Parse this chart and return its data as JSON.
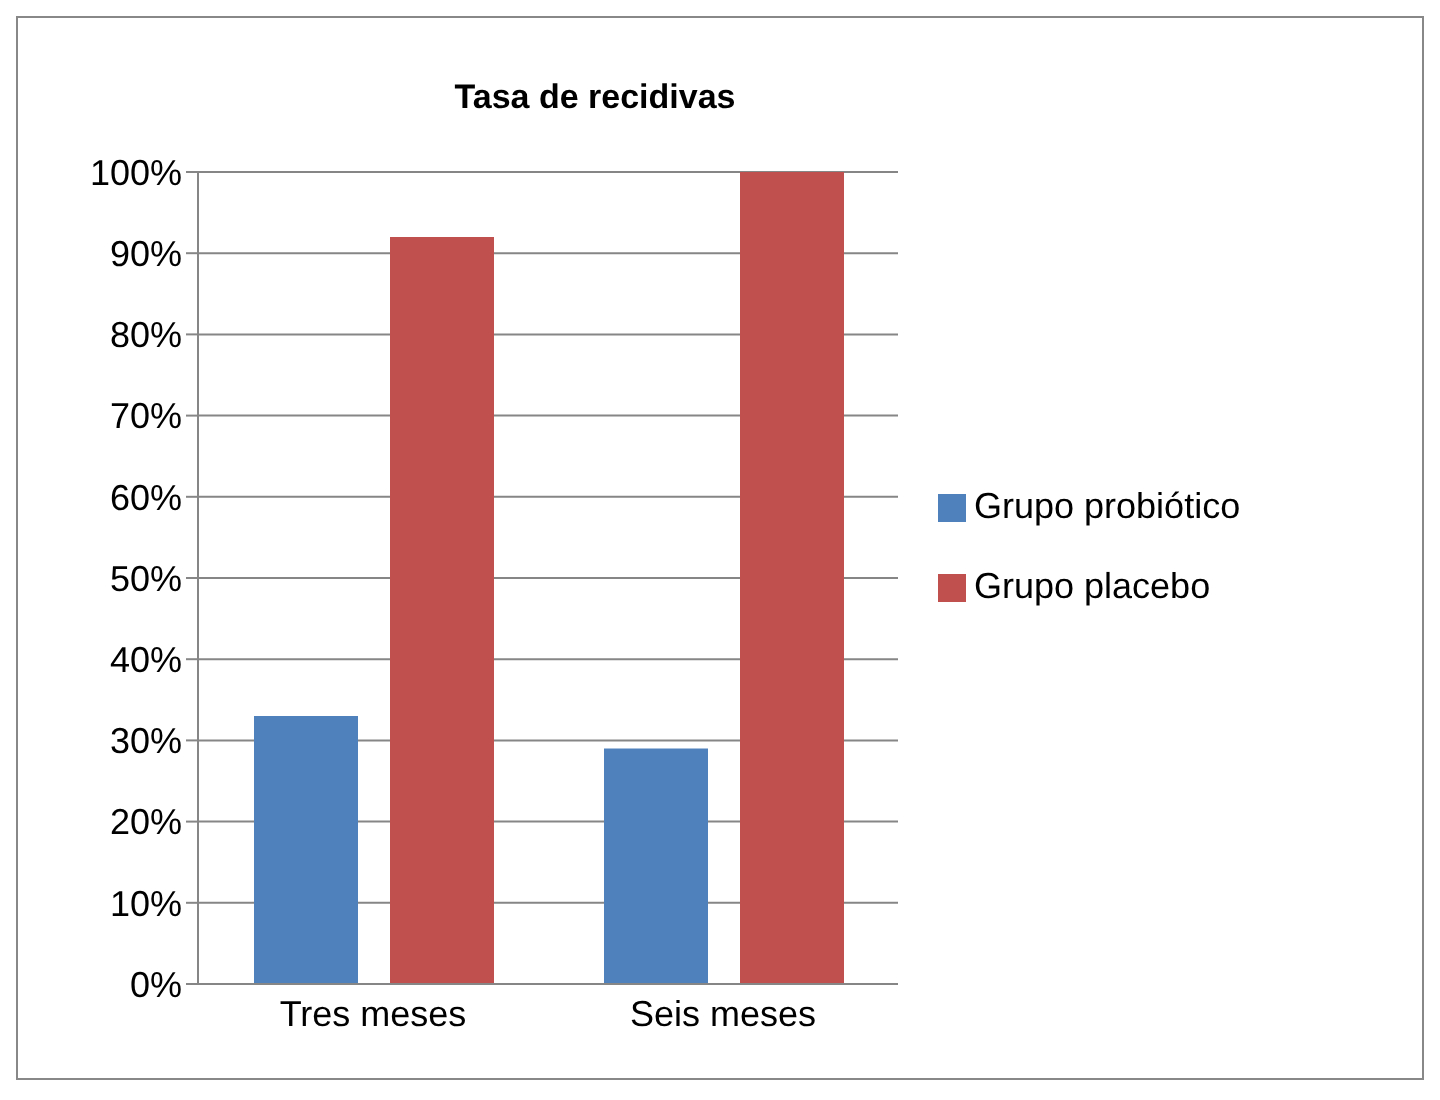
{
  "chart_data": {
    "type": "bar",
    "title": "Tasa de recidivas",
    "categories": [
      "Tres meses",
      "Seis meses"
    ],
    "series": [
      {
        "name": "Grupo probiótico",
        "color": "#4f81bd",
        "values": [
          33,
          29
        ]
      },
      {
        "name": "Grupo placebo",
        "color": "#c0504d",
        "values": [
          92,
          100
        ]
      }
    ],
    "ylim": [
      0,
      100
    ],
    "yticks": [
      {
        "value": 0,
        "label": "0%"
      },
      {
        "value": 10,
        "label": "10%"
      },
      {
        "value": 20,
        "label": "20%"
      },
      {
        "value": 30,
        "label": "30%"
      },
      {
        "value": 40,
        "label": "40%"
      },
      {
        "value": 50,
        "label": "50%"
      },
      {
        "value": 60,
        "label": "60%"
      },
      {
        "value": 70,
        "label": "70%"
      },
      {
        "value": 80,
        "label": "80%"
      },
      {
        "value": 90,
        "label": "90%"
      },
      {
        "value": 100,
        "label": "100%"
      }
    ],
    "grid": "y",
    "legend": "right"
  }
}
